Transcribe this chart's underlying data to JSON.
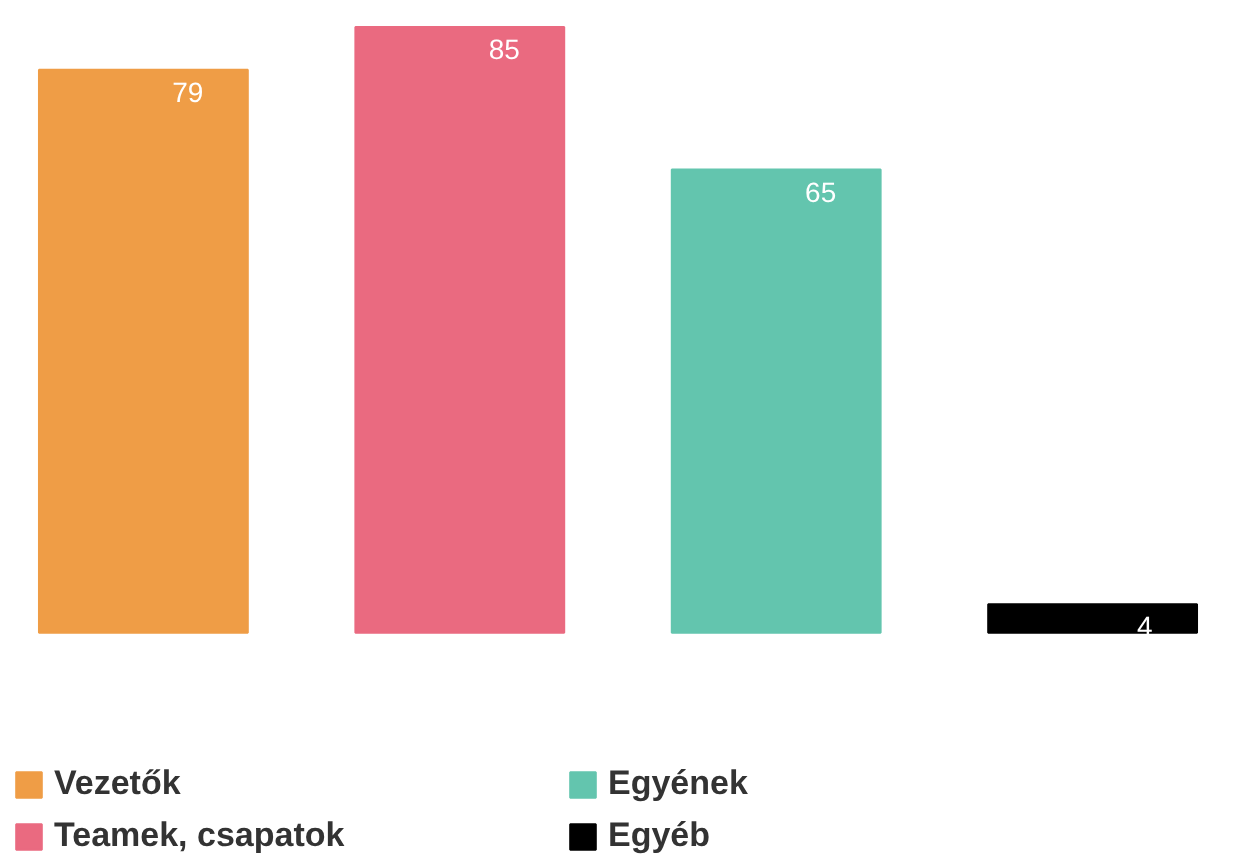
{
  "chart_data": {
    "type": "bar",
    "stacked": true,
    "categories": [
      null,
      null,
      null,
      null
    ],
    "series": [
      {
        "name": "Vezetők",
        "color": "#ef9d46",
        "values": [
          79,
          null,
          null,
          null
        ]
      },
      {
        "name": "Teamek, csapatok",
        "color": "#ea6a80",
        "values": [
          null,
          85,
          null,
          null
        ]
      },
      {
        "name": "Egyének",
        "color": "#63c5ae",
        "values": [
          null,
          null,
          65,
          null
        ]
      },
      {
        "name": "Egyéb",
        "color": "#000000",
        "values": [
          null,
          null,
          null,
          4
        ]
      }
    ],
    "data_labels": true,
    "legend": "bottom",
    "tick_labels": false
  }
}
